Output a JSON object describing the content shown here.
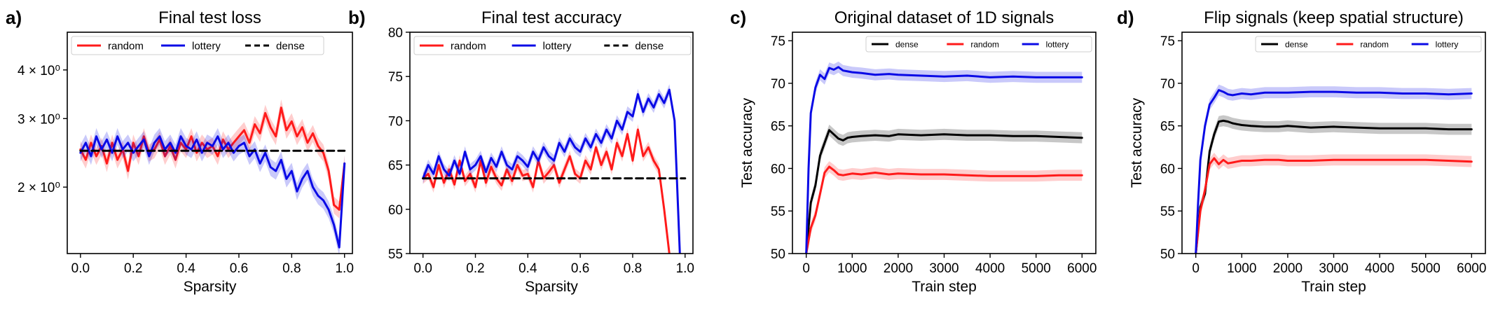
{
  "chart_data": [
    {
      "panel_label": "a)",
      "type": "line",
      "title": "Final test loss",
      "xlabel": "Sparsity",
      "ylabel": "",
      "yscale": "log",
      "xlim": [
        -0.05,
        1.03
      ],
      "ylim": [
        1.35,
        5.0
      ],
      "xticks": [
        0.0,
        0.2,
        0.4,
        0.6,
        0.8,
        1.0
      ],
      "xtick_labels": [
        "0.0",
        "0.2",
        "0.4",
        "0.6",
        "0.8",
        "1.0"
      ],
      "yticks": [
        2,
        3,
        4
      ],
      "ytick_labels": [
        "2 × 10⁰",
        "3 × 10⁰",
        "4 × 10⁰"
      ],
      "legend": {
        "position": "top-left",
        "entries": [
          "random",
          "lottery",
          "dense"
        ]
      },
      "series": [
        {
          "name": "random",
          "color": "#ff1a1a",
          "style": "solid",
          "band": true,
          "x": [
            0,
            0.02,
            0.04,
            0.06,
            0.08,
            0.1,
            0.12,
            0.14,
            0.16,
            0.18,
            0.2,
            0.22,
            0.24,
            0.26,
            0.28,
            0.3,
            0.32,
            0.34,
            0.36,
            0.38,
            0.4,
            0.42,
            0.44,
            0.46,
            0.48,
            0.5,
            0.52,
            0.54,
            0.56,
            0.58,
            0.6,
            0.62,
            0.64,
            0.66,
            0.68,
            0.7,
            0.72,
            0.74,
            0.76,
            0.78,
            0.8,
            0.82,
            0.84,
            0.86,
            0.88,
            0.9,
            0.92,
            0.94,
            0.96,
            0.98,
            1.0
          ],
          "y": [
            2.5,
            2.35,
            2.6,
            2.4,
            2.55,
            2.3,
            2.6,
            2.35,
            2.5,
            2.2,
            2.6,
            2.4,
            2.7,
            2.45,
            2.5,
            2.65,
            2.4,
            2.55,
            2.35,
            2.6,
            2.5,
            2.7,
            2.45,
            2.6,
            2.5,
            2.55,
            2.4,
            2.65,
            2.5,
            2.6,
            2.7,
            2.8,
            2.6,
            2.9,
            2.75,
            3.1,
            2.85,
            2.7,
            3.2,
            2.8,
            2.95,
            2.7,
            2.85,
            2.6,
            2.75,
            2.55,
            2.45,
            2.2,
            1.8,
            1.75,
            2.3
          ]
        },
        {
          "name": "lottery",
          "color": "#0a0ae6",
          "style": "solid",
          "band": true,
          "x": [
            0,
            0.02,
            0.04,
            0.06,
            0.08,
            0.1,
            0.12,
            0.14,
            0.16,
            0.18,
            0.2,
            0.22,
            0.24,
            0.26,
            0.28,
            0.3,
            0.32,
            0.34,
            0.36,
            0.38,
            0.4,
            0.42,
            0.44,
            0.46,
            0.48,
            0.5,
            0.52,
            0.54,
            0.56,
            0.58,
            0.6,
            0.62,
            0.64,
            0.66,
            0.68,
            0.7,
            0.72,
            0.74,
            0.76,
            0.78,
            0.8,
            0.82,
            0.84,
            0.86,
            0.88,
            0.9,
            0.92,
            0.94,
            0.96,
            0.98,
            1.0
          ],
          "y": [
            2.45,
            2.6,
            2.4,
            2.7,
            2.5,
            2.65,
            2.45,
            2.7,
            2.5,
            2.6,
            2.45,
            2.55,
            2.65,
            2.4,
            2.6,
            2.7,
            2.5,
            2.6,
            2.45,
            2.7,
            2.55,
            2.5,
            2.65,
            2.45,
            2.6,
            2.55,
            2.7,
            2.5,
            2.6,
            2.45,
            2.55,
            2.6,
            2.4,
            2.5,
            2.3,
            2.45,
            2.25,
            2.2,
            2.35,
            2.1,
            2.2,
            1.95,
            2.1,
            2.2,
            2.0,
            1.9,
            1.85,
            1.75,
            1.6,
            1.4,
            2.3
          ]
        },
        {
          "name": "dense",
          "color": "#000000",
          "style": "dashed",
          "band": false,
          "x": [
            0,
            1.0
          ],
          "y": [
            2.48,
            2.48
          ]
        }
      ]
    },
    {
      "panel_label": "b)",
      "type": "line",
      "title": "Final test accuracy",
      "xlabel": "Sparsity",
      "ylabel": "",
      "xlim": [
        -0.05,
        1.03
      ],
      "ylim": [
        55,
        80
      ],
      "xticks": [
        0.0,
        0.2,
        0.4,
        0.6,
        0.8,
        1.0
      ],
      "xtick_labels": [
        "0.0",
        "0.2",
        "0.4",
        "0.6",
        "0.8",
        "1.0"
      ],
      "yticks": [
        55,
        60,
        65,
        70,
        75,
        80
      ],
      "ytick_labels": [
        "55",
        "60",
        "65",
        "70",
        "75",
        "80"
      ],
      "legend": {
        "position": "top-left",
        "entries": [
          "random",
          "lottery",
          "dense"
        ]
      },
      "series": [
        {
          "name": "random",
          "color": "#ff1a1a",
          "style": "solid",
          "band": true,
          "x": [
            0,
            0.02,
            0.04,
            0.06,
            0.08,
            0.1,
            0.12,
            0.14,
            0.16,
            0.18,
            0.2,
            0.22,
            0.24,
            0.26,
            0.28,
            0.3,
            0.32,
            0.34,
            0.36,
            0.38,
            0.4,
            0.42,
            0.44,
            0.46,
            0.48,
            0.5,
            0.52,
            0.54,
            0.56,
            0.58,
            0.6,
            0.62,
            0.64,
            0.66,
            0.68,
            0.7,
            0.72,
            0.74,
            0.76,
            0.78,
            0.8,
            0.82,
            0.84,
            0.86,
            0.88,
            0.9,
            0.92,
            0.94
          ],
          "y": [
            63.5,
            64,
            62.5,
            65,
            63,
            64.5,
            62.8,
            65.5,
            63.2,
            64,
            62.5,
            65.5,
            63,
            64.8,
            63.5,
            62.7,
            64.5,
            63.2,
            65,
            63.8,
            64,
            62.5,
            65.5,
            63.5,
            64.2,
            65,
            63,
            64.5,
            66,
            64,
            63.5,
            65.5,
            64.5,
            67,
            65,
            66.5,
            64.5,
            67.5,
            66,
            68.5,
            65.5,
            69,
            66,
            67,
            65.5,
            64.5,
            60,
            55
          ]
        },
        {
          "name": "lottery",
          "color": "#0a0ae6",
          "style": "solid",
          "band": true,
          "x": [
            0,
            0.02,
            0.04,
            0.06,
            0.08,
            0.1,
            0.12,
            0.14,
            0.16,
            0.18,
            0.2,
            0.22,
            0.24,
            0.26,
            0.28,
            0.3,
            0.32,
            0.34,
            0.36,
            0.38,
            0.4,
            0.42,
            0.44,
            0.46,
            0.48,
            0.5,
            0.52,
            0.54,
            0.56,
            0.58,
            0.6,
            0.62,
            0.64,
            0.66,
            0.68,
            0.7,
            0.72,
            0.74,
            0.76,
            0.78,
            0.8,
            0.82,
            0.84,
            0.86,
            0.88,
            0.9,
            0.92,
            0.94,
            0.96,
            0.98
          ],
          "y": [
            63.5,
            65,
            64,
            66,
            64.5,
            63.8,
            65.5,
            64,
            66.5,
            64.5,
            65,
            66,
            64.2,
            65.8,
            64.8,
            66.5,
            65,
            64.5,
            66,
            65.5,
            64.8,
            66.5,
            65.5,
            67,
            66,
            65.5,
            67.5,
            66.5,
            68,
            67,
            66.5,
            68,
            67,
            68.5,
            67.5,
            69,
            68,
            70,
            69,
            71,
            70.5,
            73,
            71,
            72.5,
            71.5,
            73,
            72,
            73.5,
            70,
            55
          ]
        },
        {
          "name": "dense",
          "color": "#000000",
          "style": "dashed",
          "band": false,
          "x": [
            0,
            1.0
          ],
          "y": [
            63.5,
            63.5
          ]
        }
      ]
    },
    {
      "panel_label": "c)",
      "type": "line",
      "title": "Original dataset of 1D signals",
      "xlabel": "Train step",
      "ylabel": "Test accuracy",
      "xlim": [
        -300,
        6300
      ],
      "ylim": [
        50,
        76
      ],
      "xticks": [
        0,
        1000,
        2000,
        3000,
        4000,
        5000,
        6000
      ],
      "xtick_labels": [
        "0",
        "1000",
        "2000",
        "3000",
        "4000",
        "5000",
        "6000"
      ],
      "yticks": [
        50,
        55,
        60,
        65,
        70,
        75
      ],
      "ytick_labels": [
        "50",
        "55",
        "60",
        "65",
        "70",
        "75"
      ],
      "legend": {
        "position": "top-right",
        "entries": [
          "dense",
          "random",
          "lottery"
        ]
      },
      "series": [
        {
          "name": "dense",
          "color": "#000000",
          "style": "solid",
          "band": true,
          "x": [
            0,
            100,
            200,
            300,
            400,
            500,
            600,
            700,
            800,
            900,
            1000,
            1200,
            1500,
            1800,
            2000,
            2500,
            3000,
            3500,
            4000,
            4500,
            5000,
            5500,
            6000
          ],
          "y": [
            50,
            56,
            58,
            61.5,
            63,
            64.5,
            64,
            63.5,
            63.3,
            63.6,
            63.7,
            63.8,
            63.9,
            63.8,
            64,
            63.9,
            64,
            63.9,
            63.9,
            63.8,
            63.8,
            63.7,
            63.6
          ]
        },
        {
          "name": "random",
          "color": "#ff1a1a",
          "style": "solid",
          "band": true,
          "x": [
            0,
            100,
            200,
            300,
            400,
            500,
            600,
            700,
            800,
            900,
            1000,
            1200,
            1500,
            1800,
            2000,
            2500,
            3000,
            3500,
            4000,
            4500,
            5000,
            5500,
            6000
          ],
          "y": [
            50,
            53,
            54.5,
            57,
            59.5,
            60.2,
            59.8,
            59.3,
            59.2,
            59.3,
            59.4,
            59.3,
            59.5,
            59.3,
            59.4,
            59.3,
            59.3,
            59.2,
            59.1,
            59.1,
            59.1,
            59.2,
            59.2
          ]
        },
        {
          "name": "lottery",
          "color": "#0a0ae6",
          "style": "solid",
          "band": true,
          "x": [
            0,
            50,
            100,
            200,
            300,
            400,
            500,
            600,
            700,
            800,
            900,
            1000,
            1200,
            1500,
            1800,
            2000,
            2500,
            3000,
            3500,
            4000,
            4500,
            5000,
            5500,
            6000
          ],
          "y": [
            50,
            60,
            66.5,
            69.5,
            71,
            70.5,
            71.8,
            71.6,
            71.9,
            71.5,
            71.4,
            71.3,
            71.2,
            71.0,
            71.1,
            71.0,
            70.9,
            70.8,
            70.9,
            70.7,
            70.8,
            70.7,
            70.7,
            70.7
          ]
        }
      ]
    },
    {
      "panel_label": "d)",
      "type": "line",
      "title": "Flip signals (keep spatial structure)",
      "xlabel": "Train step",
      "ylabel": "Test accuracy",
      "xlim": [
        -300,
        6300
      ],
      "ylim": [
        50,
        76
      ],
      "xticks": [
        0,
        1000,
        2000,
        3000,
        4000,
        5000,
        6000
      ],
      "xtick_labels": [
        "0",
        "1000",
        "2000",
        "3000",
        "4000",
        "5000",
        "6000"
      ],
      "yticks": [
        50,
        55,
        60,
        65,
        70,
        75
      ],
      "ytick_labels": [
        "50",
        "55",
        "60",
        "65",
        "70",
        "75"
      ],
      "legend": {
        "position": "top-right",
        "entries": [
          "dense",
          "random",
          "lottery"
        ]
      },
      "series": [
        {
          "name": "dense",
          "color": "#000000",
          "style": "solid",
          "band": true,
          "x": [
            0,
            100,
            200,
            300,
            400,
            500,
            600,
            700,
            800,
            900,
            1000,
            1200,
            1500,
            1800,
            2000,
            2500,
            3000,
            3500,
            4000,
            4500,
            5000,
            5500,
            6000
          ],
          "y": [
            50,
            55.5,
            57,
            62,
            64,
            65.5,
            65.6,
            65.5,
            65.3,
            65.2,
            65.1,
            65.0,
            64.9,
            64.9,
            65.0,
            64.8,
            64.9,
            64.8,
            64.7,
            64.7,
            64.7,
            64.6,
            64.6
          ]
        },
        {
          "name": "random",
          "color": "#ff1a1a",
          "style": "solid",
          "band": true,
          "x": [
            0,
            100,
            200,
            300,
            400,
            500,
            600,
            700,
            800,
            900,
            1000,
            1200,
            1500,
            1800,
            2000,
            2500,
            3000,
            3500,
            4000,
            4500,
            5000,
            5500,
            6000
          ],
          "y": [
            50,
            55,
            57.5,
            60.5,
            61.2,
            60.5,
            61.0,
            60.6,
            60.7,
            60.8,
            60.9,
            60.9,
            61.0,
            61.0,
            60.9,
            60.9,
            61.0,
            61.0,
            61.0,
            61.0,
            61.0,
            60.9,
            60.8
          ]
        },
        {
          "name": "lottery",
          "color": "#0a0ae6",
          "style": "solid",
          "band": true,
          "x": [
            0,
            50,
            100,
            200,
            300,
            400,
            500,
            600,
            700,
            800,
            900,
            1000,
            1200,
            1500,
            1800,
            2000,
            2500,
            3000,
            3500,
            4000,
            4500,
            5000,
            5500,
            6000
          ],
          "y": [
            50,
            56,
            61,
            65,
            67.5,
            68.3,
            69.2,
            69.0,
            68.7,
            68.6,
            68.7,
            68.8,
            68.7,
            68.9,
            68.9,
            68.9,
            69.0,
            69.0,
            68.9,
            68.9,
            68.8,
            68.8,
            68.7,
            68.8
          ]
        }
      ]
    }
  ]
}
